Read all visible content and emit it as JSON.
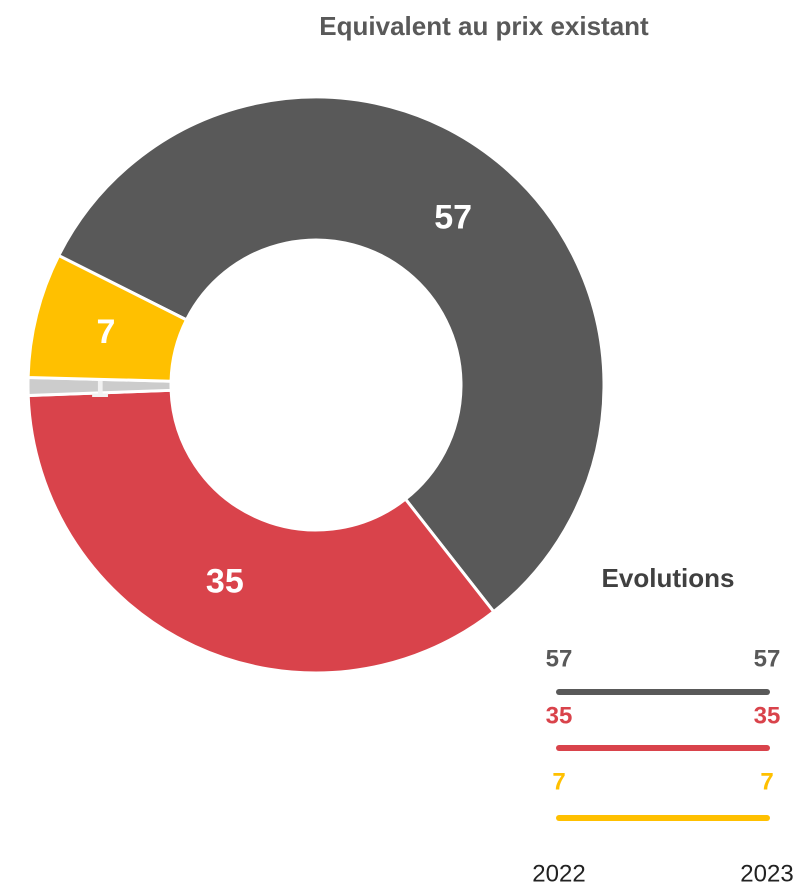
{
  "chart_data": [
    {
      "type": "donut",
      "title": "Equivalent au prix existant",
      "values": [
        57,
        35,
        1,
        7
      ],
      "colors": [
        "#595959",
        "#d9434b",
        "#cccccc",
        "#ffc000"
      ],
      "label_colors": [
        "#ffffff",
        "#ffffff",
        "#f2f2f2",
        "#ffffff"
      ]
    },
    {
      "type": "line",
      "title": "Evolutions",
      "categories": [
        "2022",
        "2023"
      ],
      "series": [
        {
          "color": "#595959",
          "values": [
            57,
            57
          ]
        },
        {
          "color": "#d9434b",
          "values": [
            35,
            35
          ]
        },
        {
          "color": "#ffc000",
          "values": [
            7,
            7
          ]
        }
      ]
    }
  ]
}
